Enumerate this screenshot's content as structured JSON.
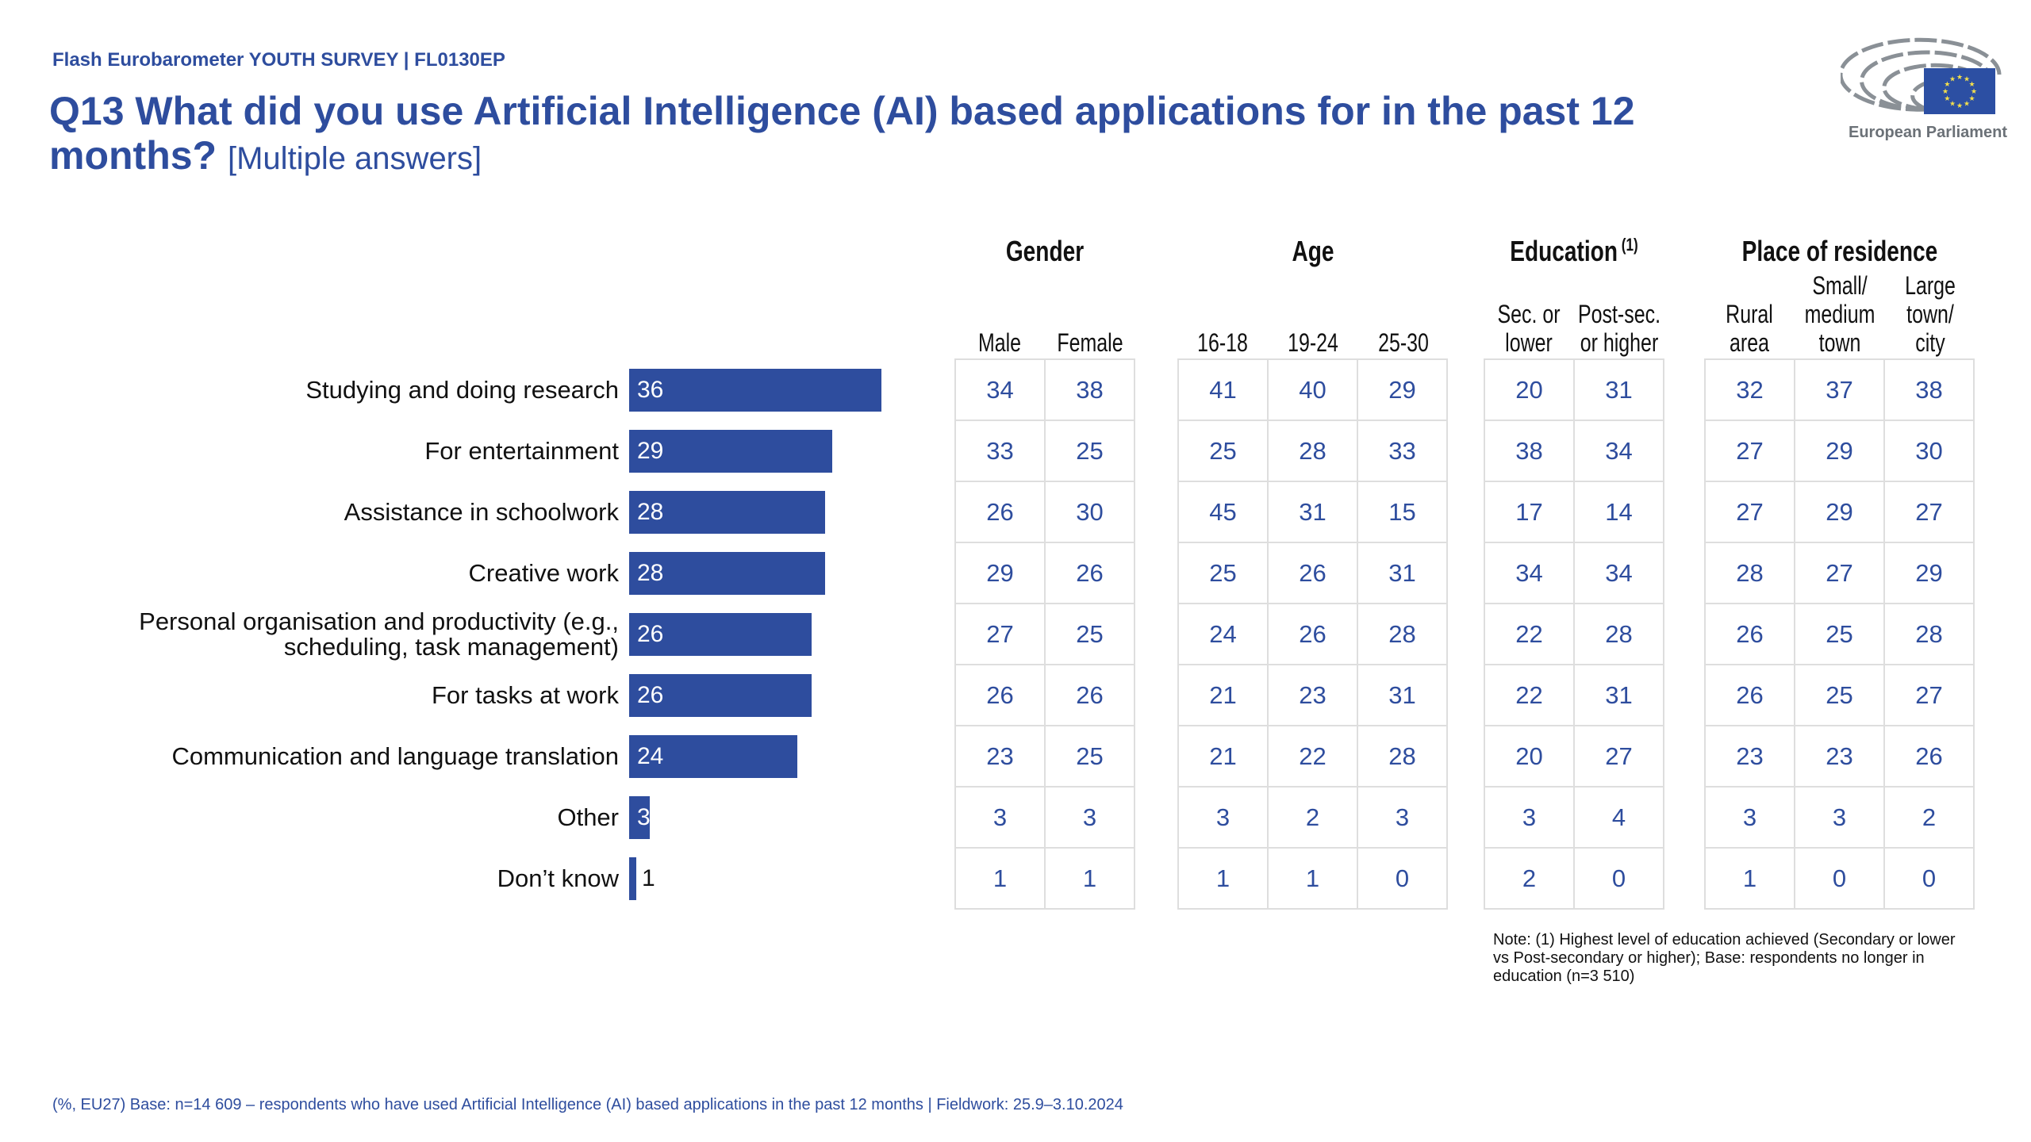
{
  "header": {
    "kicker": "Flash Eurobarometer YOUTH SURVEY | FL0130EP",
    "title": "Q13 What did you use Artificial Intelligence (AI) based applications for in the past 12 months?",
    "title_suffix": "[Multiple answers]",
    "logo_text": "European Parliament"
  },
  "colors": {
    "brand": "#2e4d9e",
    "flag": "#2c4fa3",
    "stars": "#f5e04b",
    "logo_grey": "#6b7177"
  },
  "groups": [
    {
      "title": "Gender",
      "sup": "",
      "columns": [
        "Male",
        "Female"
      ]
    },
    {
      "title": "Age",
      "sup": "",
      "columns": [
        "16-18",
        "19-24",
        "25-30"
      ]
    },
    {
      "title": "Education",
      "sup": "(1)",
      "columns": [
        "Sec. or\nlower",
        "Post-sec.\nor higher"
      ]
    },
    {
      "title": "Place of residence",
      "sup": "",
      "columns": [
        "Rural\narea",
        "Small/\nmedium\ntown",
        "Large\ntown/\ncity"
      ]
    }
  ],
  "chart_data": {
    "type": "bar",
    "orientation": "horizontal",
    "title": "Q13 What did you use Artificial Intelligence (AI) based applications for in the past 12 months? [Multiple answers]",
    "unit": "%",
    "xlim": [
      0,
      100
    ],
    "categories": [
      "Studying and doing research",
      "For entertainment",
      "Assistance in schoolwork",
      "Creative work",
      "Personal organisation and productivity (e.g., scheduling, task management)",
      "For tasks at work",
      "Communication and language translation",
      "Other",
      "Don’t know"
    ],
    "values": [
      36,
      29,
      28,
      28,
      26,
      26,
      24,
      3,
      1
    ],
    "table": {
      "type": "table",
      "columns": [
        "Male",
        "Female",
        "16-18",
        "19-24",
        "25-30",
        "Sec. or lower",
        "Post-sec. or higher",
        "Rural area",
        "Small/medium town",
        "Large town/city"
      ],
      "rows": [
        [
          34,
          38,
          41,
          40,
          29,
          20,
          31,
          32,
          37,
          38
        ],
        [
          33,
          25,
          25,
          28,
          33,
          38,
          34,
          27,
          29,
          30
        ],
        [
          26,
          30,
          45,
          31,
          15,
          17,
          14,
          27,
          29,
          27
        ],
        [
          29,
          26,
          25,
          26,
          31,
          34,
          34,
          28,
          27,
          29
        ],
        [
          27,
          25,
          24,
          26,
          28,
          22,
          28,
          26,
          25,
          28
        ],
        [
          26,
          26,
          21,
          23,
          31,
          22,
          31,
          26,
          25,
          27
        ],
        [
          23,
          25,
          21,
          22,
          28,
          20,
          27,
          23,
          23,
          26
        ],
        [
          3,
          3,
          3,
          2,
          3,
          3,
          4,
          3,
          3,
          2
        ],
        [
          1,
          1,
          1,
          1,
          0,
          2,
          0,
          1,
          0,
          0
        ]
      ]
    }
  },
  "note": "Note: (1) Highest level of education achieved (Secondary or lower vs Post-secondary or higher); Base: respondents no longer in education (n=3 510)",
  "footer": "(%, EU27)  Base: n=14 609 – respondents who have used Artificial Intelligence (AI) based applications in the past 12 months   |  Fieldwork: 25.9–3.10.2024"
}
